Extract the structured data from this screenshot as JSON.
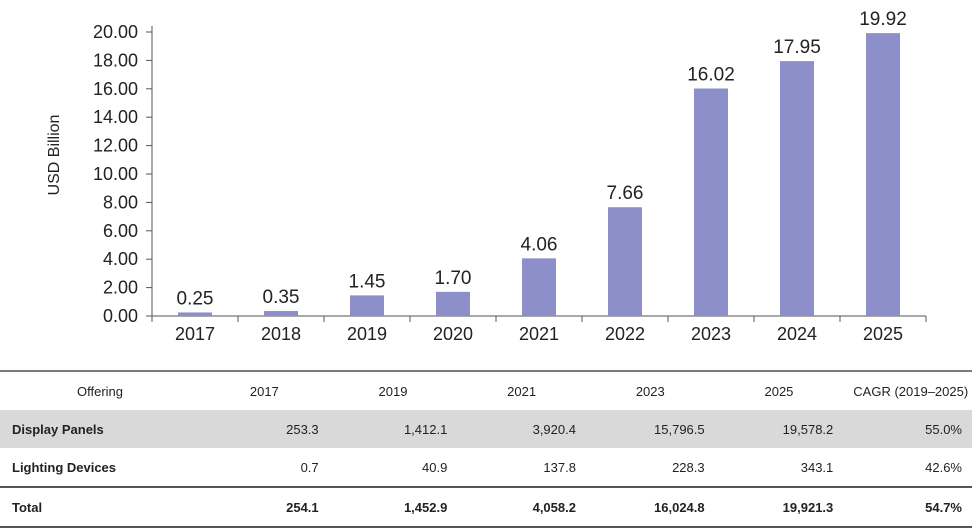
{
  "chart_data": {
    "type": "bar",
    "categories": [
      "2017",
      "2018",
      "2019",
      "2020",
      "2021",
      "2022",
      "2023",
      "2024",
      "2025"
    ],
    "values": [
      0.25,
      0.35,
      1.45,
      1.7,
      4.06,
      7.66,
      16.02,
      17.95,
      19.92
    ],
    "value_labels": [
      "0.25",
      "0.35",
      "1.45",
      "1.70",
      "4.06",
      "7.66",
      "16.02",
      "17.95",
      "19.92"
    ],
    "ylabel": "USD Billion",
    "ylim": [
      0,
      20
    ],
    "yticks": [
      "0.00",
      "2.00",
      "4.00",
      "6.00",
      "8.00",
      "10.00",
      "12.00",
      "14.00",
      "16.00",
      "18.00",
      "20.00"
    ],
    "bar_color": "#8c8fca",
    "grid": false
  },
  "table": {
    "headers": [
      "Offering",
      "2017",
      "2019",
      "2021",
      "2023",
      "2025",
      "CAGR (2019–2025)"
    ],
    "rows": [
      {
        "name": "Display Panels",
        "cells": [
          "253.3",
          "1,412.1",
          "3,920.4",
          "15,796.5",
          "19,578.2",
          "55.0%"
        ]
      },
      {
        "name": "Lighting Devices",
        "cells": [
          "0.7",
          "40.9",
          "137.8",
          "228.3",
          "343.1",
          "42.6%"
        ]
      },
      {
        "name": "Total",
        "cells": [
          "254.1",
          "1,452.9",
          "4,058.2",
          "16,024.8",
          "19,921.3",
          "54.7%"
        ]
      }
    ]
  }
}
